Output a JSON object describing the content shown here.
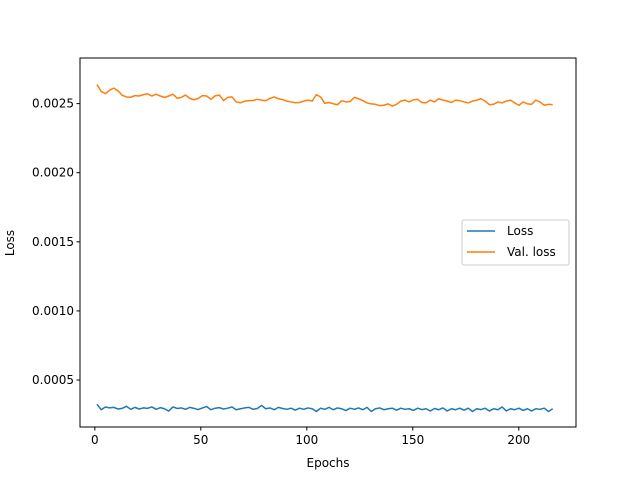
{
  "chart_data": {
    "type": "line",
    "title": "",
    "xlabel": "Epochs",
    "ylabel": "Loss",
    "xlim": [
      -7,
      227
    ],
    "ylim": [
      0.00016,
      0.00283
    ],
    "x_ticks": [
      0,
      50,
      100,
      150,
      200
    ],
    "x_tick_labels": [
      "0",
      "50",
      "100",
      "150",
      "200"
    ],
    "y_ticks": [
      0.0005,
      0.001,
      0.0015,
      0.002,
      0.0025
    ],
    "y_tick_labels": [
      "0.0005",
      "0.0010",
      "0.0015",
      "0.0020",
      "0.0025"
    ],
    "grid": false,
    "legend_position": "center-right",
    "x_start": 1,
    "x_end": 216,
    "series": [
      {
        "name": "Loss",
        "color": "#1f77b4",
        "values": [
          0.000325,
          0.000285,
          0.000305,
          0.000298,
          0.000302,
          0.00029,
          0.000295,
          0.00031,
          0.000288,
          0.000302,
          0.00029,
          0.000298,
          0.000295,
          0.000305,
          0.000288,
          0.0003,
          0.000292,
          0.000275,
          0.000305,
          0.000294,
          0.000298,
          0.000288,
          0.000302,
          0.000295,
          0.000286,
          0.000298,
          0.000308,
          0.000285,
          0.000296,
          0.0003,
          0.00029,
          0.000296,
          0.000305,
          0.000285,
          0.000292,
          0.000298,
          0.000302,
          0.000288,
          0.000294,
          0.000316,
          0.000292,
          0.000298,
          0.000285,
          0.000302,
          0.000294,
          0.000288,
          0.000296,
          0.000282,
          0.000296,
          0.000288,
          0.000298,
          0.000292,
          0.000272,
          0.000296,
          0.000288,
          0.000302,
          0.000285,
          0.000298,
          0.000292,
          0.000279,
          0.000296,
          0.000288,
          0.000298,
          0.000285,
          0.000302,
          0.000272,
          0.000292,
          0.000298,
          0.000285,
          0.000292,
          0.000296,
          0.000282,
          0.000296,
          0.000288,
          0.000292,
          0.00028,
          0.000296,
          0.000286,
          0.000292,
          0.000276,
          0.000294,
          0.000285,
          0.000298,
          0.000276,
          0.000292,
          0.000285,
          0.000296,
          0.000282,
          0.000296,
          0.000272,
          0.000292,
          0.000286,
          0.000296,
          0.000276,
          0.000292,
          0.000285,
          0.000305,
          0.000276,
          0.000292,
          0.000285,
          0.000296,
          0.00028,
          0.000292,
          0.000276,
          0.000292,
          0.000288,
          0.000296,
          0.000272,
          0.000292
        ]
      },
      {
        "name": "Val. loss",
        "color": "#ff7f0e",
        "values": [
          0.002638,
          0.002588,
          0.002572,
          0.002598,
          0.002612,
          0.002592,
          0.00256,
          0.002548,
          0.002546,
          0.002558,
          0.002555,
          0.002565,
          0.002571,
          0.002555,
          0.002568,
          0.002555,
          0.002545,
          0.002555,
          0.002568,
          0.002539,
          0.002545,
          0.002562,
          0.002538,
          0.002528,
          0.002538,
          0.002558,
          0.002555,
          0.002531,
          0.002556,
          0.002562,
          0.002522,
          0.002545,
          0.002549,
          0.002512,
          0.002506,
          0.002518,
          0.002522,
          0.002522,
          0.002531,
          0.002525,
          0.002521,
          0.002538,
          0.002548,
          0.002535,
          0.002529,
          0.002518,
          0.002512,
          0.002506,
          0.002508,
          0.002518,
          0.002525,
          0.002518,
          0.002565,
          0.002548,
          0.002502,
          0.002508,
          0.002499,
          0.002492,
          0.002521,
          0.002512,
          0.002515,
          0.002545,
          0.002535,
          0.002522,
          0.002505,
          0.002498,
          0.002495,
          0.002485,
          0.002488,
          0.002498,
          0.002482,
          0.002495,
          0.002518,
          0.002525,
          0.002512,
          0.002528,
          0.002531,
          0.002508,
          0.002505,
          0.002525,
          0.002512,
          0.002535,
          0.002525,
          0.002518,
          0.002508,
          0.002525,
          0.002521,
          0.002512,
          0.002505,
          0.002518,
          0.002525,
          0.002535,
          0.002518,
          0.002492,
          0.002495,
          0.002512,
          0.002505,
          0.002518,
          0.002525,
          0.002505,
          0.002488,
          0.002512,
          0.002498,
          0.002495,
          0.002525,
          0.002512,
          0.002488,
          0.002495,
          0.002492
        ]
      }
    ]
  }
}
